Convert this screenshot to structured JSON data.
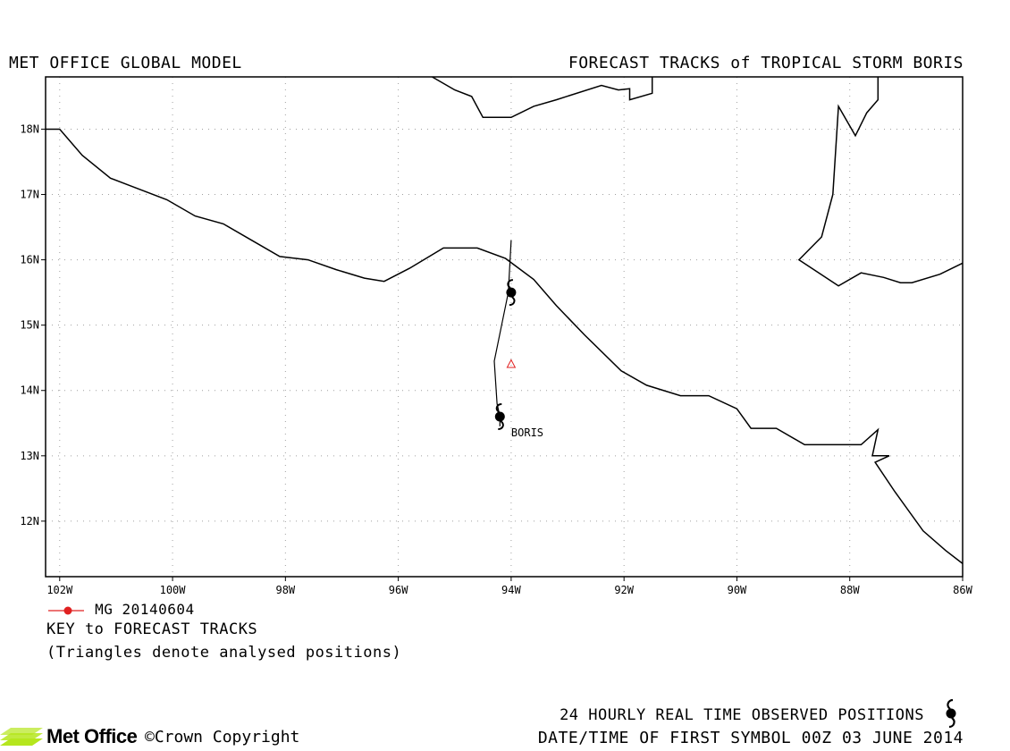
{
  "header": {
    "title_left": "MET OFFICE GLOBAL MODEL",
    "title_right": "FORECAST TRACKS of TROPICAL STORM BORIS"
  },
  "map": {
    "lon_range": [
      -102.25,
      -86
    ],
    "lat_range": [
      11.15,
      18.8
    ],
    "x_ticks": [
      {
        "lon": -102,
        "label": "102W"
      },
      {
        "lon": -100,
        "label": "100W"
      },
      {
        "lon": -98,
        "label": "98W"
      },
      {
        "lon": -96,
        "label": "96W"
      },
      {
        "lon": -94,
        "label": "94W"
      },
      {
        "lon": -92,
        "label": "92W"
      },
      {
        "lon": -90,
        "label": "90W"
      },
      {
        "lon": -88,
        "label": "88W"
      },
      {
        "lon": -86,
        "label": "86W"
      }
    ],
    "y_ticks": [
      {
        "lat": 12,
        "label": "12N"
      },
      {
        "lat": 13,
        "label": "13N"
      },
      {
        "lat": 14,
        "label": "14N"
      },
      {
        "lat": 15,
        "label": "15N"
      },
      {
        "lat": 16,
        "label": "16N"
      },
      {
        "lat": 17,
        "label": "17N"
      },
      {
        "lat": 18,
        "label": "18N"
      }
    ],
    "grid": true,
    "grid_color": "#a0a0a0",
    "coastline_color": "#000000",
    "coastlines": [
      [
        [
          -102.25,
          18.0
        ],
        [
          -102.0,
          18.0
        ],
        [
          -101.6,
          17.6
        ],
        [
          -101.1,
          17.25
        ],
        [
          -100.8,
          17.15
        ],
        [
          -100.1,
          16.92
        ],
        [
          -99.6,
          16.67
        ],
        [
          -99.1,
          16.55
        ],
        [
          -98.6,
          16.3
        ],
        [
          -98.1,
          16.05
        ],
        [
          -97.6,
          16.0
        ],
        [
          -97.1,
          15.85
        ],
        [
          -96.6,
          15.72
        ],
        [
          -96.25,
          15.67
        ],
        [
          -95.8,
          15.87
        ],
        [
          -95.2,
          16.18
        ],
        [
          -94.6,
          16.18
        ],
        [
          -94.1,
          16.02
        ],
        [
          -93.6,
          15.7
        ],
        [
          -93.2,
          15.3
        ],
        [
          -92.7,
          14.85
        ],
        [
          -92.05,
          14.3
        ],
        [
          -91.6,
          14.08
        ],
        [
          -91.0,
          13.92
        ],
        [
          -90.5,
          13.92
        ],
        [
          -90.0,
          13.72
        ],
        [
          -89.75,
          13.42
        ],
        [
          -89.3,
          13.42
        ],
        [
          -88.8,
          13.17
        ],
        [
          -87.8,
          13.17
        ],
        [
          -87.5,
          13.4
        ],
        [
          -87.6,
          13.0
        ],
        [
          -87.3,
          13.0
        ],
        [
          -87.55,
          12.9
        ],
        [
          -87.2,
          12.45
        ],
        [
          -86.7,
          11.85
        ],
        [
          -86.3,
          11.55
        ],
        [
          -86.0,
          11.35
        ]
      ],
      [
        [
          -95.4,
          18.8
        ],
        [
          -95.0,
          18.6
        ],
        [
          -94.7,
          18.5
        ],
        [
          -94.5,
          18.18
        ],
        [
          -94.0,
          18.18
        ],
        [
          -93.6,
          18.35
        ],
        [
          -93.2,
          18.45
        ],
        [
          -92.4,
          18.67
        ],
        [
          -92.1,
          18.6
        ],
        [
          -91.9,
          18.62
        ],
        [
          -91.9,
          18.45
        ],
        [
          -91.5,
          18.55
        ],
        [
          -91.5,
          18.8
        ]
      ],
      [
        [
          -87.5,
          18.8
        ],
        [
          -87.5,
          18.45
        ],
        [
          -87.7,
          18.25
        ],
        [
          -87.9,
          17.9
        ],
        [
          -88.2,
          18.35
        ],
        [
          -88.3,
          17.0
        ],
        [
          -88.5,
          16.35
        ],
        [
          -88.9,
          16.0
        ],
        [
          -88.2,
          15.6
        ],
        [
          -87.8,
          15.8
        ],
        [
          -87.4,
          15.73
        ],
        [
          -87.1,
          15.65
        ],
        [
          -86.9,
          15.65
        ],
        [
          -86.4,
          15.78
        ],
        [
          -86.0,
          15.95
        ]
      ]
    ],
    "forecast_track": {
      "name": "BORIS",
      "color": "#000000",
      "points": [
        [
          -94.2,
          13.45
        ],
        [
          -94.2,
          13.6
        ],
        [
          -94.25,
          13.8
        ],
        [
          -94.3,
          14.45
        ],
        [
          -94.05,
          15.5
        ],
        [
          -94.0,
          16.3
        ]
      ]
    },
    "storm_symbols": [
      {
        "lon": -94.0,
        "lat": 15.5
      },
      {
        "lon": -94.2,
        "lat": 13.6
      }
    ],
    "analysed_position": {
      "lon": -94.0,
      "lat": 14.4,
      "color": "#e02020"
    },
    "storm_label": {
      "text": "BORIS",
      "lon": -94.0,
      "lat": 13.35
    }
  },
  "legend": {
    "run_label": "MG 20140604",
    "run_color": "#e02020",
    "key_title": "KEY to FORECAST TRACKS",
    "key_note": "(Triangles denote analysed positions)"
  },
  "footer": {
    "observed_text": "24 HOURLY REAL TIME OBSERVED POSITIONS",
    "date_text": "DATE/TIME OF FIRST SYMBOL 00Z 03 JUNE 2014",
    "brand": "Met Office",
    "brand_color": "#b5e61d",
    "copyright": "©Crown Copyright"
  }
}
